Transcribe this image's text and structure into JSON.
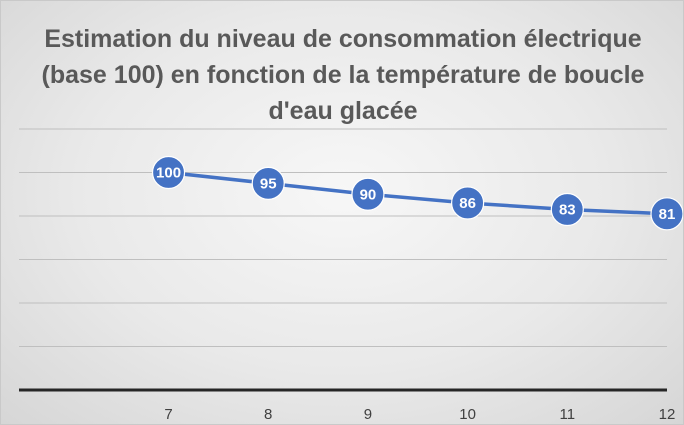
{
  "chart_data": {
    "type": "line",
    "title": "Estimation du niveau de consommation électrique (base 100) en fonction de la température de boucle d'eau glacée",
    "xlabel": "",
    "ylabel": "",
    "categories": [
      "7",
      "8",
      "9",
      "10",
      "11",
      "12"
    ],
    "series": [
      {
        "values": [
          100,
          95,
          90,
          86,
          83,
          81
        ]
      }
    ],
    "ylim": [
      0,
      120
    ],
    "grid": true,
    "legend": "none",
    "colors": {
      "line": "#4472c4",
      "grid": "#bfbfbf",
      "axis": "#262626"
    }
  }
}
